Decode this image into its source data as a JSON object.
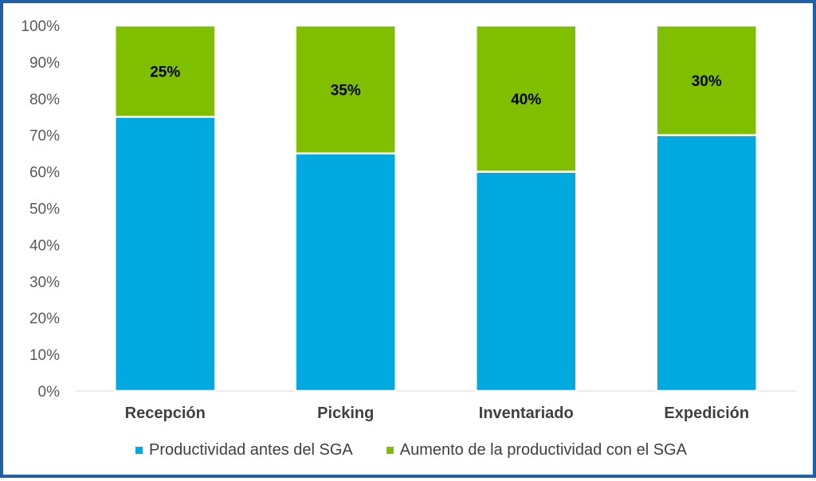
{
  "chart_data": {
    "type": "bar",
    "stacked": true,
    "categories": [
      "Recepción",
      "Picking",
      "Inventariado",
      "Expedición"
    ],
    "series": [
      {
        "name": "Productividad antes del SGA",
        "values": [
          75,
          65,
          60,
          70
        ],
        "color": "#00a9e0"
      },
      {
        "name": "Aumento de la productividad con el SGA",
        "values": [
          25,
          35,
          40,
          30
        ],
        "color": "#7fbf00"
      }
    ],
    "data_labels": [
      "25%",
      "35%",
      "40%",
      "30%"
    ],
    "yticks": [
      "0%",
      "10%",
      "20%",
      "30%",
      "40%",
      "50%",
      "60%",
      "70%",
      "80%",
      "90%",
      "100%"
    ],
    "ylim": [
      0,
      100
    ],
    "title": "",
    "xlabel": "",
    "ylabel": "",
    "legend_position": "bottom",
    "frame_color": "#1f5fa8",
    "axis_color": "#d9d9d9"
  }
}
